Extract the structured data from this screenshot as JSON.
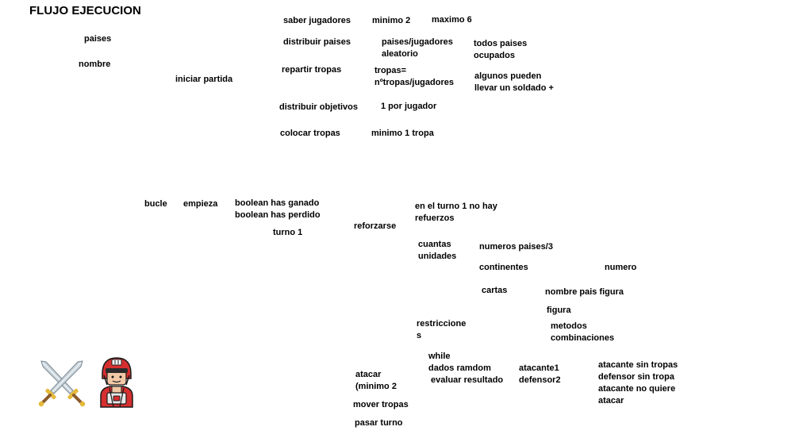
{
  "title": "FLUJO EJECUCION",
  "setup": {
    "paises": "paises",
    "nombre": "nombre",
    "iniciar_partida": "iniciar partida",
    "saber_jugadores": "saber jugadores",
    "minimo_2": "minimo 2",
    "maximo_6": "maximo 6",
    "distribuir_paises": "distribuir paises",
    "paises_jugadores_aleatorio": "paises/jugadores\naleatorio",
    "todos_paises_ocupados": "todos paises\nocupados",
    "repartir_tropas": "repartir tropas",
    "tropas_formula": "tropas=\nnºtropas/jugadores",
    "algunos_pueden": "algunos pueden\nllevar un soldado +",
    "distribuir_objetivos": "distribuir objetivos",
    "uno_por_jugador": "1 por jugador",
    "colocar_tropas": "colocar tropas",
    "minimo_1_tropa": "minimo 1 tropa"
  },
  "loop": {
    "bucle": "bucle",
    "empieza": "empieza",
    "booleans": "boolean has ganado\nboolean has perdido",
    "turno_1": "turno 1",
    "reforzarse": "reforzarse",
    "turno1_no_refuerzos": "en el turno 1 no hay\nrefuerzos",
    "cuantas_unidades": "cuantas\nunidades",
    "numeros_paises": "numeros paises/3",
    "continentes": "continentes",
    "numero": "numero",
    "cartas": "cartas",
    "nombre_pais_figura": "nombre pais figura",
    "figura": "figura",
    "restricciones": "restriccione\ns",
    "metodos_combinaciones": "metodos\ncombinaciones"
  },
  "attack": {
    "atacar": "atacar\n(minimo 2",
    "while_dados": "while\ndados ramdom\n evaluar resultado",
    "atacante_defensor": "atacante1\ndefensor2",
    "condiciones": "atacante sin tropas\ndefensor sin tropa\natacante no quiere\natacar",
    "mover_tropas": "mover tropas",
    "pasar_turno": "pasar turno"
  },
  "icons": {
    "swords": "crossed-swords-icon",
    "soldier": "soldier-icon"
  },
  "colors": {
    "text": "#000000",
    "background": "#ffffff",
    "blade": "#c9d3da",
    "hilt": "#e5b93a",
    "helmet": "#d62f2f",
    "skin": "#f2c9a6"
  }
}
